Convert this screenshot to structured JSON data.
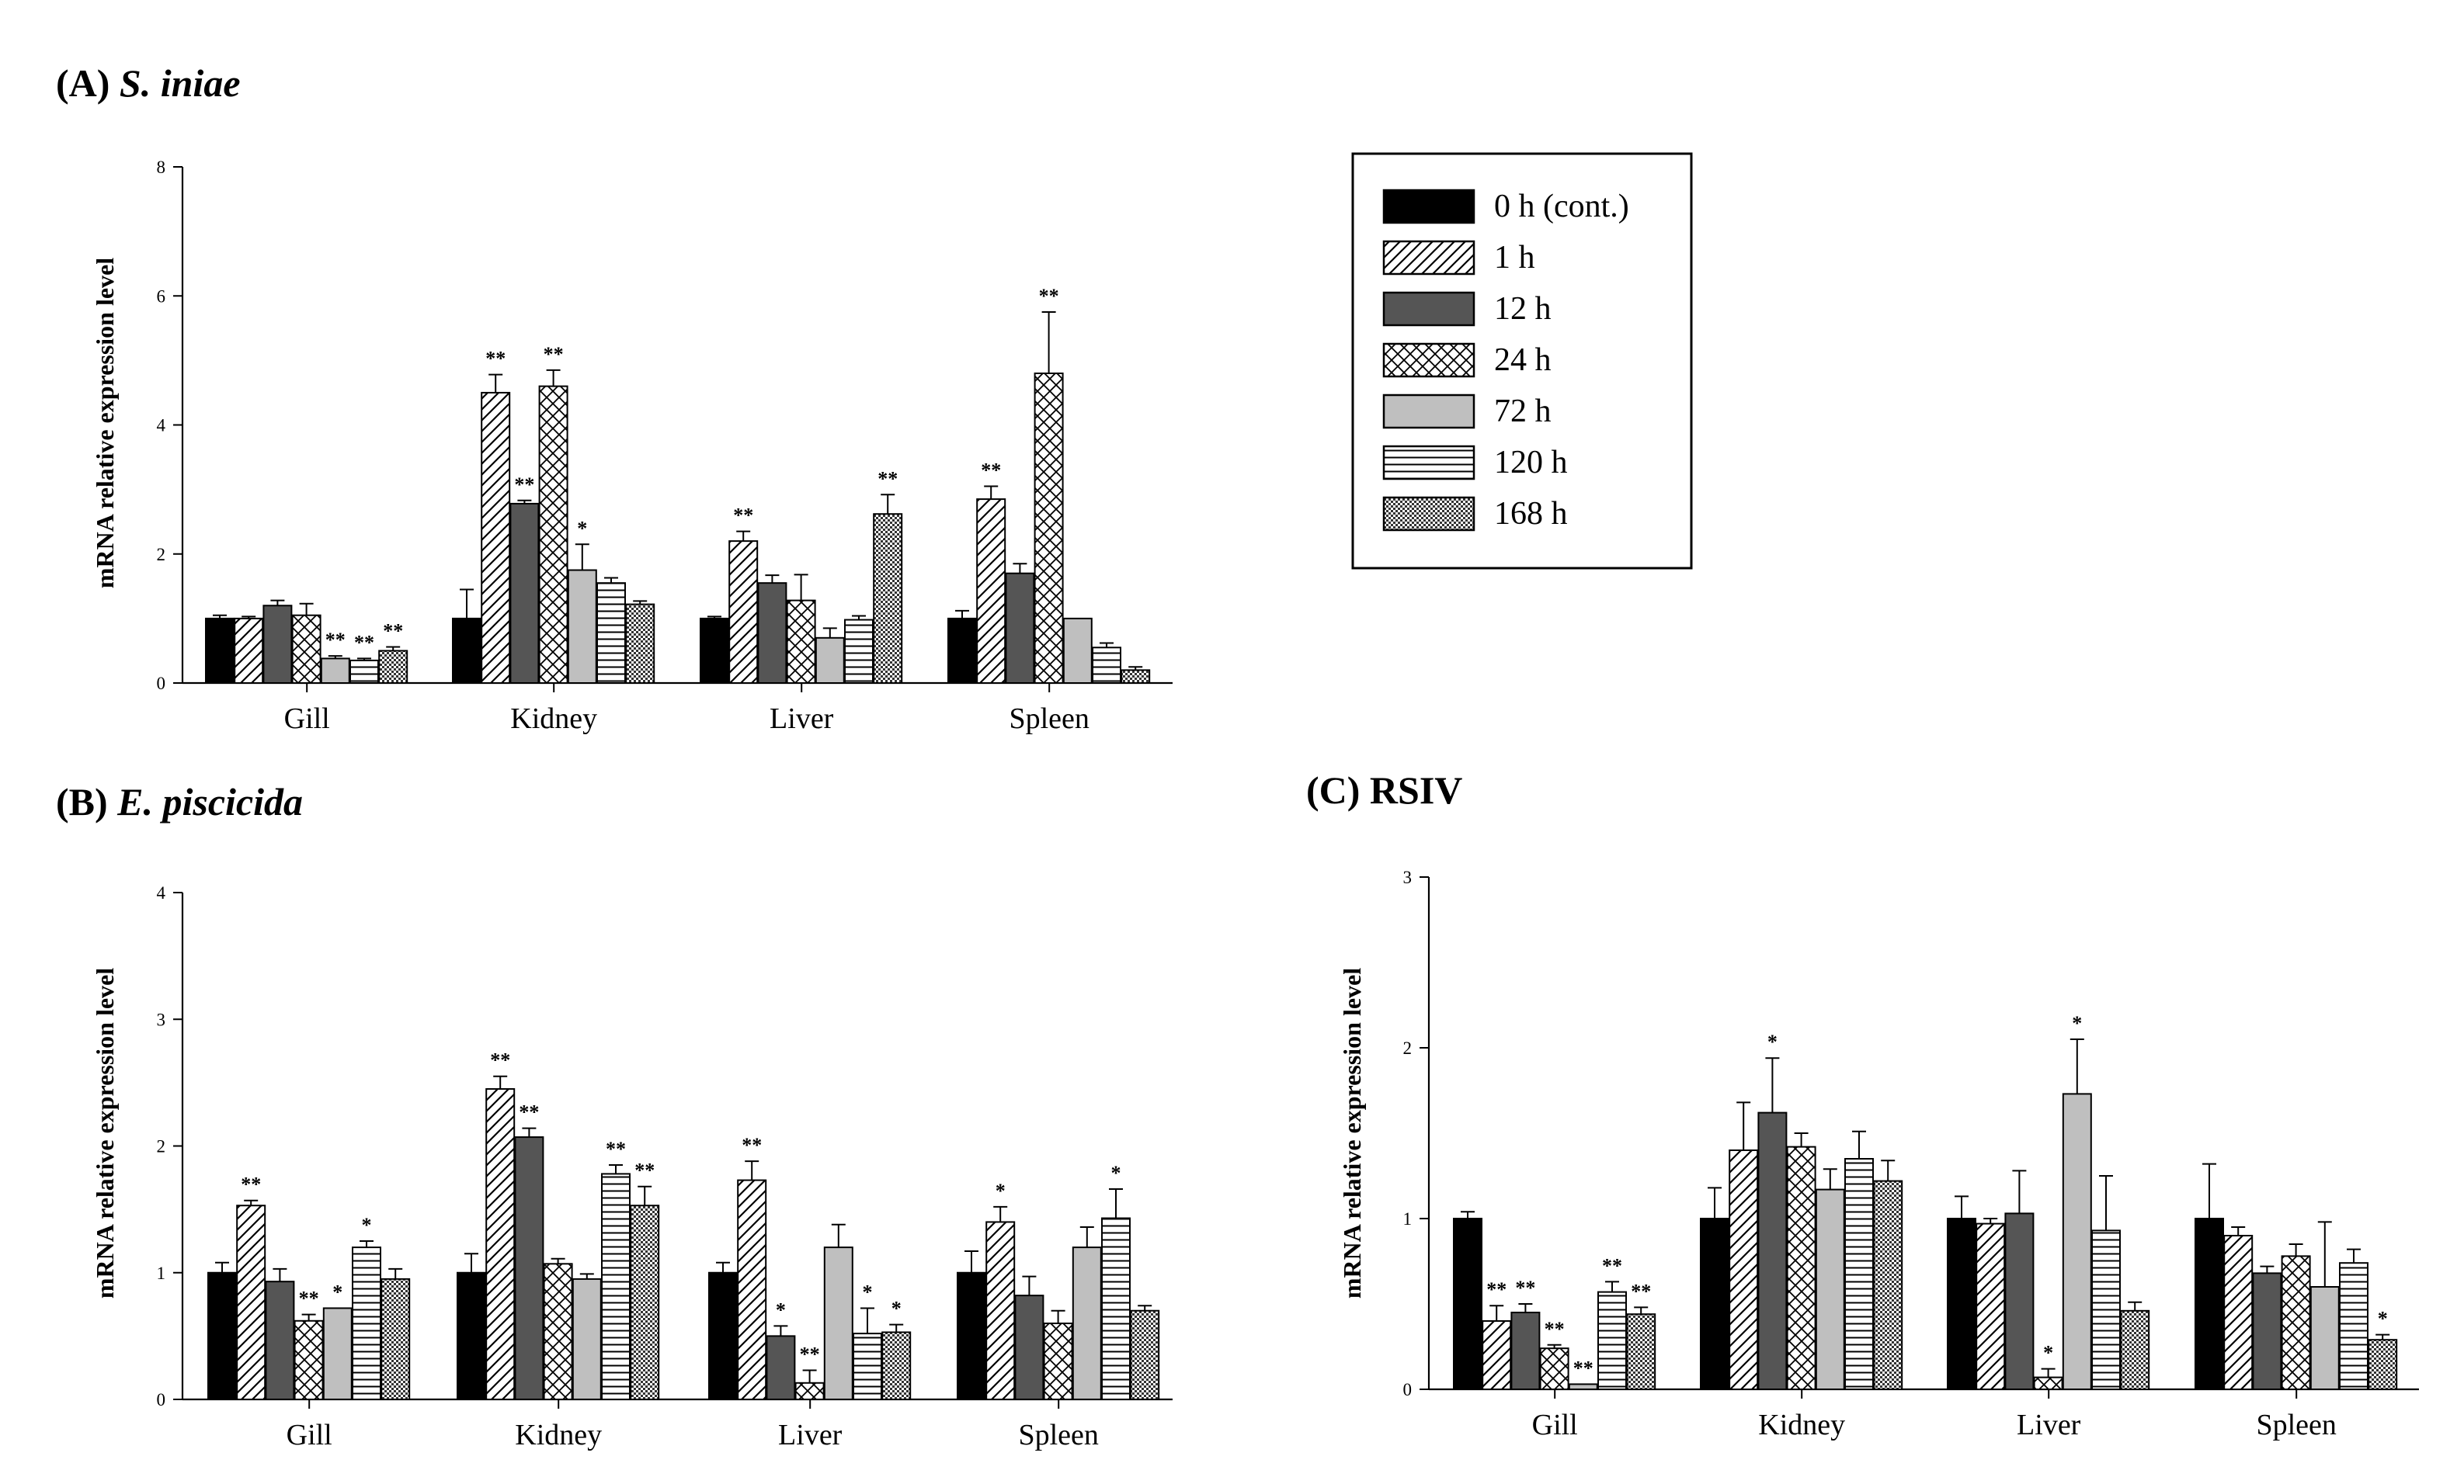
{
  "legend": {
    "entries": [
      {
        "label": "0 h (cont.)",
        "pattern": "solid-black"
      },
      {
        "label": "1 h",
        "pattern": "diagonal"
      },
      {
        "label": "12 h",
        "pattern": "dark-gray"
      },
      {
        "label": "24 h",
        "pattern": "crosshatch"
      },
      {
        "label": "72 h",
        "pattern": "light-gray"
      },
      {
        "label": "120 h",
        "pattern": "horizontal"
      },
      {
        "label": "168 h",
        "pattern": "checker"
      }
    ]
  },
  "colors": {
    "black": "#000000",
    "dark_gray": "#555555",
    "light_gray": "#bfbfbf",
    "white": "#ffffff"
  },
  "chart_data": [
    {
      "type": "bar",
      "panel_letter": "(A)",
      "title_name": "S. iniae",
      "ylabel": "mRNA relative expression level",
      "ylim": [
        0,
        8
      ],
      "yticks": [
        "0",
        "2",
        "4",
        "6",
        "8"
      ],
      "categories": [
        "Gill",
        "Kidney",
        "Liver",
        "Spleen"
      ],
      "series": [
        {
          "name": "0 h (cont.)",
          "values": [
            1.0,
            1.0,
            1.0,
            1.0
          ],
          "errors": [
            0.05,
            0.45,
            0.03,
            0.12
          ],
          "stars": [
            "",
            "",
            "",
            ""
          ]
        },
        {
          "name": "1 h",
          "values": [
            1.0,
            4.5,
            2.2,
            2.85
          ],
          "errors": [
            0.03,
            0.28,
            0.15,
            0.2
          ],
          "stars": [
            "",
            "**",
            "**",
            "**"
          ]
        },
        {
          "name": "12 h",
          "values": [
            1.2,
            2.78,
            1.55,
            1.7
          ],
          "errors": [
            0.08,
            0.05,
            0.12,
            0.15
          ],
          "stars": [
            "",
            "**",
            "",
            ""
          ]
        },
        {
          "name": "24 h",
          "values": [
            1.05,
            4.6,
            1.28,
            4.8
          ],
          "errors": [
            0.18,
            0.25,
            0.4,
            0.95
          ],
          "stars": [
            "",
            "**",
            "",
            "**"
          ]
        },
        {
          "name": "72 h",
          "values": [
            0.38,
            1.75,
            0.7,
            1.0
          ],
          "errors": [
            0.04,
            0.4,
            0.15,
            0.0
          ],
          "stars": [
            "**",
            "*",
            "",
            ""
          ]
        },
        {
          "name": "120 h",
          "values": [
            0.35,
            1.55,
            0.98,
            0.55
          ],
          "errors": [
            0.03,
            0.08,
            0.06,
            0.07
          ],
          "stars": [
            "**",
            "",
            "",
            ""
          ]
        },
        {
          "name": "168 h",
          "values": [
            0.5,
            1.22,
            2.62,
            0.2
          ],
          "errors": [
            0.06,
            0.05,
            0.3,
            0.05
          ],
          "stars": [
            "**",
            "",
            "**",
            ""
          ]
        }
      ]
    },
    {
      "type": "bar",
      "panel_letter": "(B)",
      "title_name": "E. piscicida",
      "ylabel": "mRNA relative expression level",
      "ylim": [
        0,
        4
      ],
      "yticks": [
        "0",
        "1",
        "2",
        "3",
        "4"
      ],
      "categories": [
        "Gill",
        "Kidney",
        "Liver",
        "Spleen"
      ],
      "series": [
        {
          "name": "0 h (cont.)",
          "values": [
            1.0,
            1.0,
            1.0,
            1.0
          ],
          "errors": [
            0.08,
            0.15,
            0.08,
            0.17
          ],
          "stars": [
            "",
            "",
            "",
            ""
          ]
        },
        {
          "name": "1 h",
          "values": [
            1.53,
            2.45,
            1.73,
            1.4
          ],
          "errors": [
            0.04,
            0.1,
            0.15,
            0.12
          ],
          "stars": [
            "**",
            "**",
            "**",
            "*"
          ]
        },
        {
          "name": "12 h",
          "values": [
            0.93,
            2.07,
            0.5,
            0.82
          ],
          "errors": [
            0.1,
            0.07,
            0.08,
            0.15
          ],
          "stars": [
            "",
            "**",
            "*",
            ""
          ]
        },
        {
          "name": "24 h",
          "values": [
            0.62,
            1.07,
            0.13,
            0.6
          ],
          "errors": [
            0.05,
            0.04,
            0.1,
            0.1
          ],
          "stars": [
            "**",
            "",
            "**",
            ""
          ]
        },
        {
          "name": "72 h",
          "values": [
            0.72,
            0.95,
            1.2,
            1.2
          ],
          "errors": [
            0.0,
            0.04,
            0.18,
            0.16
          ],
          "stars": [
            "*",
            "",
            "",
            ""
          ]
        },
        {
          "name": "120 h",
          "values": [
            1.2,
            1.78,
            0.52,
            1.43
          ],
          "errors": [
            0.05,
            0.07,
            0.2,
            0.23
          ],
          "stars": [
            "*",
            "**",
            "*",
            "*"
          ]
        },
        {
          "name": "168 h",
          "values": [
            0.95,
            1.53,
            0.53,
            0.7
          ],
          "errors": [
            0.08,
            0.15,
            0.06,
            0.04
          ],
          "stars": [
            "",
            "**",
            "*",
            ""
          ]
        }
      ]
    },
    {
      "type": "bar",
      "panel_letter": "(C)",
      "title_name": "RSIV",
      "ylabel": "mRNA relative expression level",
      "ylim": [
        0,
        3
      ],
      "yticks": [
        "0",
        "1",
        "2",
        "3"
      ],
      "categories": [
        "Gill",
        "Kidney",
        "Liver",
        "Spleen"
      ],
      "series": [
        {
          "name": "0 h (cont.)",
          "values": [
            1.0,
            1.0,
            1.0,
            1.0
          ],
          "errors": [
            0.04,
            0.18,
            0.13,
            0.32
          ],
          "stars": [
            "",
            "",
            "",
            ""
          ]
        },
        {
          "name": "1 h",
          "values": [
            0.4,
            1.4,
            0.97,
            0.9
          ],
          "errors": [
            0.09,
            0.28,
            0.03,
            0.05
          ],
          "stars": [
            "**",
            "",
            "",
            ""
          ]
        },
        {
          "name": "12 h",
          "values": [
            0.45,
            1.62,
            1.03,
            0.68
          ],
          "errors": [
            0.05,
            0.32,
            0.25,
            0.04
          ],
          "stars": [
            "**",
            "*",
            "",
            ""
          ]
        },
        {
          "name": "24 h",
          "values": [
            0.24,
            1.42,
            0.07,
            0.78
          ],
          "errors": [
            0.02,
            0.08,
            0.05,
            0.07
          ],
          "stars": [
            "**",
            "",
            "*",
            ""
          ]
        },
        {
          "name": "72 h",
          "values": [
            0.03,
            1.17,
            1.73,
            0.6
          ],
          "errors": [
            0.0,
            0.12,
            0.32,
            0.38
          ],
          "stars": [
            "**",
            "",
            "*",
            ""
          ]
        },
        {
          "name": "120 h",
          "values": [
            0.57,
            1.35,
            0.93,
            0.74
          ],
          "errors": [
            0.06,
            0.16,
            0.32,
            0.08
          ],
          "stars": [
            "**",
            "",
            "",
            ""
          ]
        },
        {
          "name": "168 h",
          "values": [
            0.44,
            1.22,
            0.46,
            0.29
          ],
          "errors": [
            0.04,
            0.12,
            0.05,
            0.03
          ],
          "stars": [
            "**",
            "",
            "",
            "*"
          ]
        }
      ]
    }
  ]
}
